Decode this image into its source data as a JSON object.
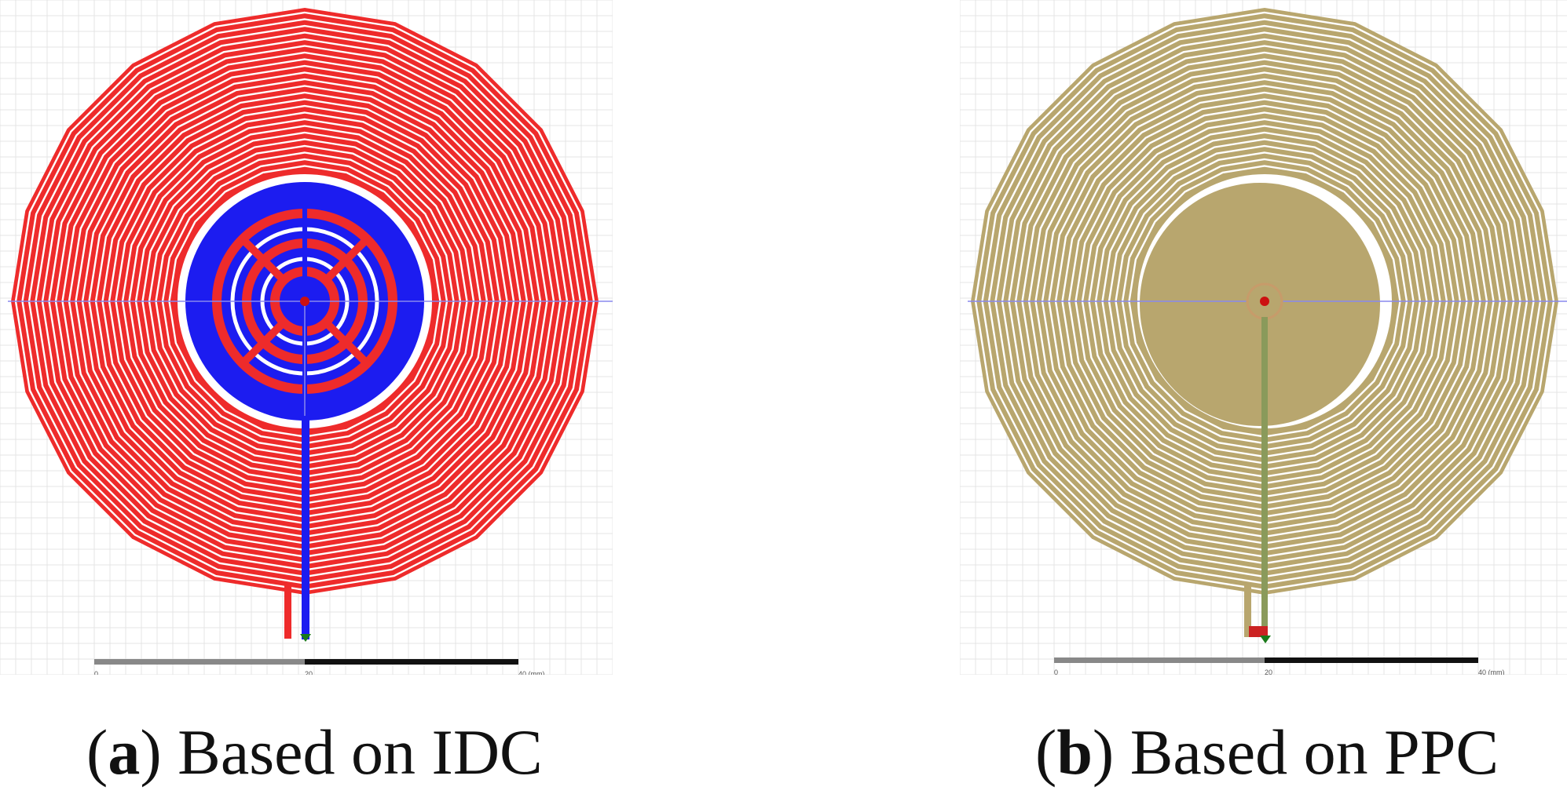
{
  "figure": {
    "panels": [
      {
        "id": "a",
        "letter": "a",
        "caption_text": " Based on IDC",
        "scale_bar_labels": [
          "0",
          "20",
          "40 (mm)"
        ],
        "colors": {
          "spiral": "#ee2b2b",
          "center": "#1c1cf0",
          "accent": "#ee2b2b",
          "feed": "#1c1cf0",
          "axis": "#8888ee"
        }
      },
      {
        "id": "b",
        "letter": "b",
        "caption_text": " Based on PPC",
        "scale_bar_labels": [
          "0",
          "20",
          "40 (mm)"
        ],
        "colors": {
          "spiral": "#b8a66e",
          "center": "#b8a66e",
          "accent": "#cc2222",
          "feed": "#8a9a5b",
          "axis": "#8888ee"
        }
      }
    ]
  }
}
